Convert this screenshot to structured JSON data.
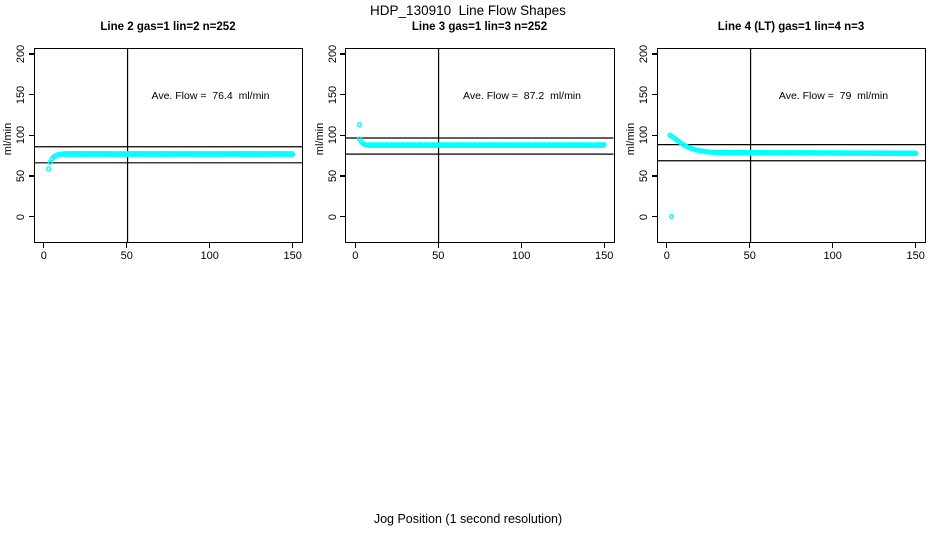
{
  "title": "HDP_130910  Line Flow Shapes",
  "xlabel": "Jog Position (1 second resolution)",
  "axes": {
    "x_ticks": [
      0,
      50,
      100,
      150
    ],
    "y_ticks": [
      0,
      50,
      100,
      150,
      200
    ],
    "xlim": [
      -6.2,
      156.2
    ],
    "ylim": [
      -32.7,
      207.8
    ],
    "vline_x": 50,
    "grid": false,
    "marker_color": "#00FFFF",
    "line_color": "#000000"
  },
  "chart_data": [
    {
      "type": "scatter",
      "title": "Line 2 gas=1 lin=2 n=252",
      "ylabel": "ml/min",
      "annotation": "Ave. Flow =  76.4  ml/min",
      "ave_flow_ml_min": 76.4,
      "n": 252,
      "hlines": [
        86.4,
        66.4
      ],
      "series": {
        "outliers": [
          [
            2,
            59
          ]
        ],
        "transient": [
          [
            3,
            67
          ],
          [
            4,
            71
          ],
          [
            5,
            73.5
          ],
          [
            6,
            75
          ],
          [
            7,
            76
          ],
          [
            8,
            76.6
          ],
          [
            9,
            77
          ],
          [
            10,
            77.2
          ]
        ],
        "plateau": {
          "x_from": 11,
          "x_to": 150.5,
          "x_step": 0.6,
          "y_start": 77.4,
          "y_end": 77.4,
          "jitter": 0.7
        }
      }
    },
    {
      "type": "scatter",
      "title": "Line 3 gas=1 lin=3 n=252",
      "ylabel": "ml/min",
      "annotation": "Ave. Flow =  87.2  ml/min",
      "ave_flow_ml_min": 87.2,
      "n": 252,
      "hlines": [
        97.2,
        77.2
      ],
      "series": {
        "outliers": [
          [
            2,
            114
          ]
        ],
        "transient": [
          [
            2,
            96
          ],
          [
            3,
            93
          ],
          [
            4,
            90.5
          ],
          [
            5,
            89.3
          ],
          [
            6,
            88.8
          ]
        ],
        "plateau": {
          "x_from": 7,
          "x_to": 150.5,
          "x_step": 0.6,
          "y_start": 88.4,
          "y_end": 88.4,
          "jitter": 0.6
        }
      }
    },
    {
      "type": "scatter",
      "title": "Line 4 (LT) gas=1 lin=4 n=3",
      "ylabel": "ml/min",
      "annotation": "Ave. Flow =  79  ml/min",
      "ave_flow_ml_min": 79,
      "n": 3,
      "hlines": [
        89,
        69
      ],
      "series": {
        "outliers": [
          [
            2,
            0
          ]
        ],
        "transient": [
          [
            1,
            100.8
          ],
          [
            2,
            99.6
          ],
          [
            3,
            98.2
          ],
          [
            4,
            96.7
          ],
          [
            5,
            95.1
          ],
          [
            6,
            93.5
          ],
          [
            7,
            92
          ],
          [
            8,
            90.6
          ],
          [
            9,
            89.3
          ],
          [
            10,
            88.1
          ],
          [
            11,
            87
          ],
          [
            12,
            86
          ],
          [
            13,
            85.1
          ],
          [
            14,
            84.3
          ],
          [
            15,
            83.6
          ],
          [
            16,
            83
          ],
          [
            17,
            82.4
          ],
          [
            18,
            81.9
          ],
          [
            19,
            81.5
          ],
          [
            20,
            81.1
          ],
          [
            21,
            80.8
          ],
          [
            22,
            80.5
          ],
          [
            23,
            80.2
          ],
          [
            24,
            80
          ],
          [
            25,
            79.8
          ],
          [
            26,
            79.6
          ],
          [
            27,
            79.5
          ],
          [
            28,
            79.4
          ],
          [
            29,
            79.3
          ],
          [
            30,
            79.2
          ]
        ],
        "plateau": {
          "x_from": 31,
          "x_to": 150.5,
          "x_step": 0.6,
          "y_start": 79.1,
          "y_end": 78.3,
          "jitter": 0.5
        }
      }
    }
  ]
}
